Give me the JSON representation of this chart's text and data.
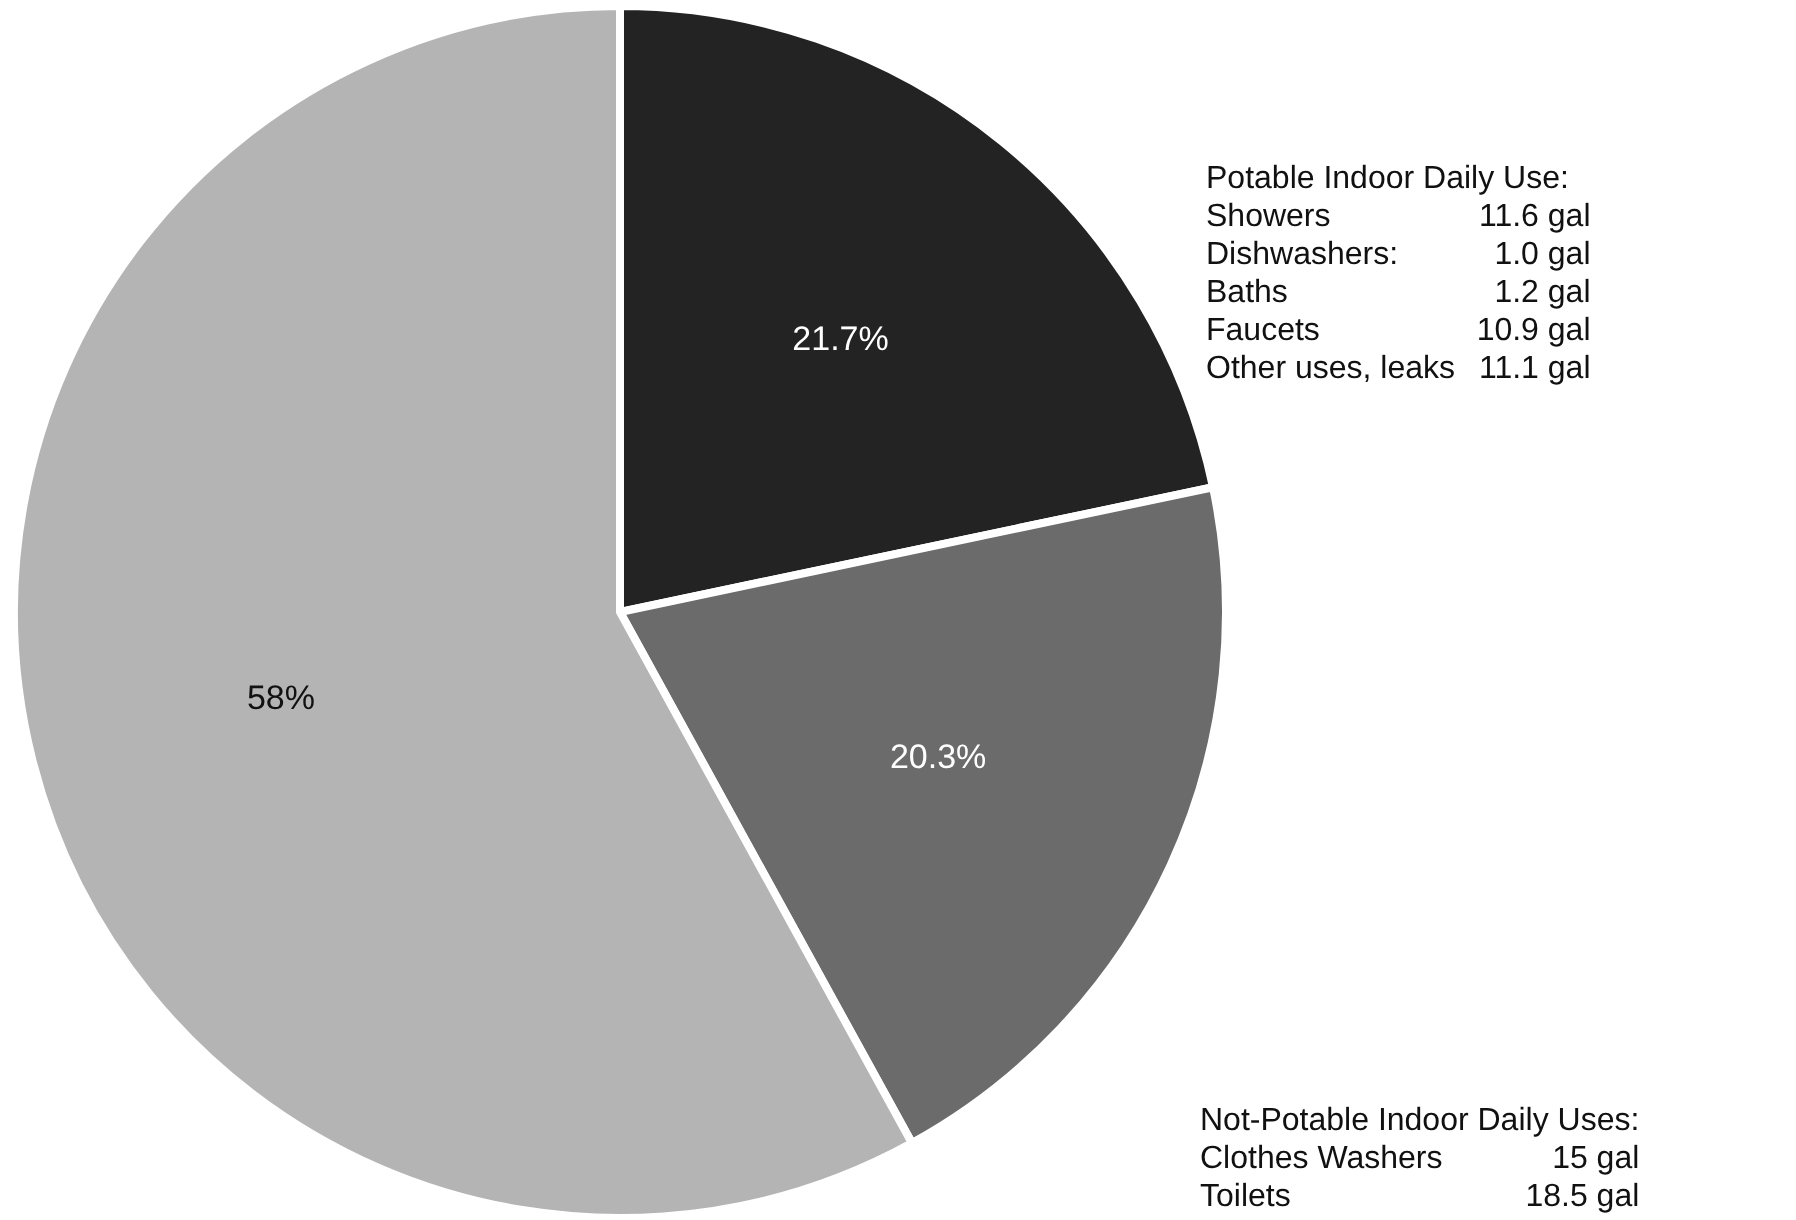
{
  "chart_data": {
    "type": "pie",
    "categories": [
      null,
      null,
      null
    ],
    "values": [
      21.7,
      20.3,
      58
    ],
    "colors": [
      "#232323",
      "#6b6b6b",
      "#b4b4b4"
    ],
    "value_labels": [
      "21.7%",
      "20.3%",
      "58%"
    ],
    "annotations": [
      "Potable Indoor Daily Use:\nShowers 11.6 gal\nDishwashers: 1.0 gal\nBaths 1.2 gal\nFaucets 10.9 gal\nOther uses, leaks 11.1 gal",
      "Not-Potable Indoor Daily Uses:\nClothes Washers 15 gal\nToilets 18.5 gal"
    ]
  }
}
